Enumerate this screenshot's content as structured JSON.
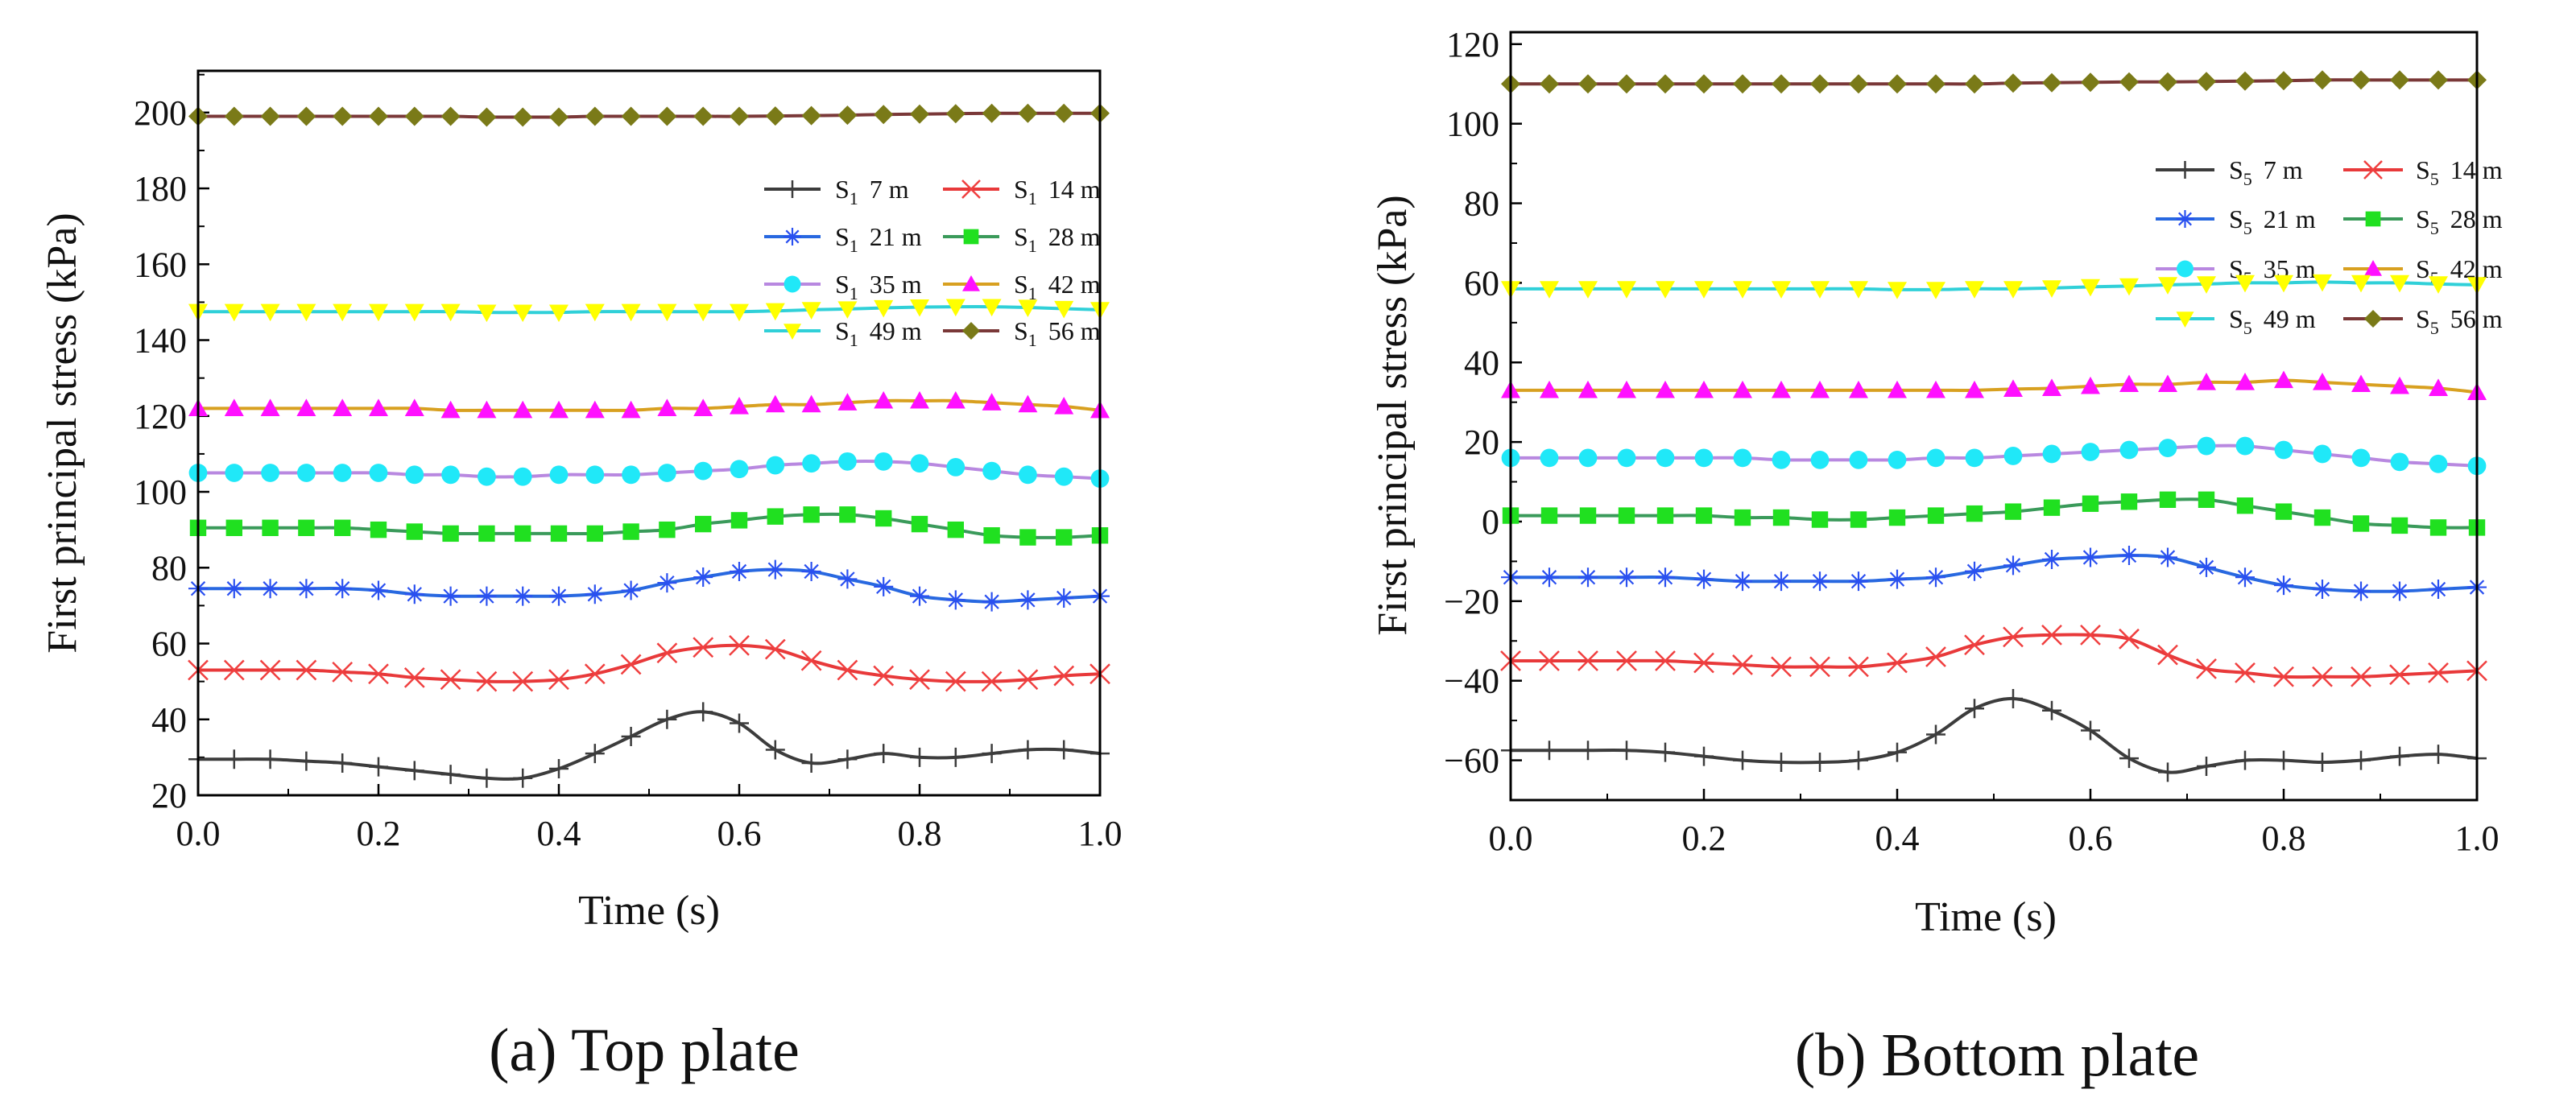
{
  "chart_data": [
    {
      "type": "line",
      "id": "a",
      "caption": "(a) Top plate",
      "xlabel": "Time (s)",
      "ylabel": "First principal stress (kPa)",
      "xlim": [
        0,
        1
      ],
      "ylim": [
        20,
        211
      ],
      "xticks": [
        "0.0",
        "0.2",
        "0.4",
        "0.6",
        "0.8",
        "1.0"
      ],
      "yticks": [
        "20",
        "40",
        "60",
        "80",
        "100",
        "120",
        "140",
        "160",
        "180",
        "200"
      ],
      "legend_position": "top-right",
      "x_step": 0.04,
      "series": [
        {
          "name": "S1 7 m",
          "label_main": "S",
          "label_sub": "1",
          "label_tail": "7 m",
          "values": [
            29.5,
            29.5,
            29.5,
            29,
            28.5,
            27.5,
            26.5,
            25.5,
            24.5,
            24.5,
            27,
            31,
            35.5,
            40,
            42,
            39,
            32,
            28.5,
            29.5,
            31,
            30,
            30,
            31,
            32,
            32,
            31
          ]
        },
        {
          "name": "S1 14 m",
          "label_main": "S",
          "label_sub": "1",
          "label_tail": "14 m",
          "values": [
            53,
            53,
            53,
            53,
            52.5,
            52,
            51,
            50.5,
            50,
            50,
            50.5,
            52,
            54.5,
            57.5,
            59,
            59.5,
            58.5,
            55.5,
            53,
            51.5,
            50.5,
            50,
            50,
            50.5,
            51.5,
            52
          ]
        },
        {
          "name": "S1 21 m",
          "label_main": "S",
          "label_sub": "1",
          "label_tail": "21 m",
          "values": [
            74.5,
            74.5,
            74.5,
            74.5,
            74.5,
            74,
            73,
            72.5,
            72.5,
            72.5,
            72.5,
            73,
            74,
            76,
            77.5,
            79,
            79.5,
            79,
            77,
            75,
            72.5,
            71.5,
            71,
            71.5,
            72,
            72.5
          ]
        },
        {
          "name": "S1 28 m",
          "label_main": "S",
          "label_sub": "1",
          "label_tail": "28 m",
          "values": [
            90.5,
            90.5,
            90.5,
            90.5,
            90.5,
            90,
            89.5,
            89,
            89,
            89,
            89,
            89,
            89.5,
            90,
            91.5,
            92.5,
            93.5,
            94,
            94,
            93,
            91.5,
            90,
            88.5,
            88,
            88,
            88.5
          ]
        },
        {
          "name": "S1 35 m",
          "label_main": "S",
          "label_sub": "1",
          "label_tail": "35 m",
          "values": [
            105,
            105,
            105,
            105,
            105,
            105,
            104.5,
            104.5,
            104,
            104,
            104.5,
            104.5,
            104.5,
            105,
            105.5,
            106,
            107,
            107.5,
            108,
            108,
            107.5,
            106.5,
            105.5,
            104.5,
            104,
            103.5
          ]
        },
        {
          "name": "S1 42 m",
          "label_main": "S",
          "label_sub": "1",
          "label_tail": "42 m",
          "values": [
            122,
            122,
            122,
            122,
            122,
            122,
            122,
            121.5,
            121.5,
            121.5,
            121.5,
            121.5,
            121.5,
            122,
            122,
            122.5,
            123,
            123,
            123.5,
            124,
            124,
            124,
            123.5,
            123,
            122.5,
            121.5
          ]
        },
        {
          "name": "S1 49 m",
          "label_main": "S",
          "label_sub": "1",
          "label_tail": "49 m",
          "values": [
            147.5,
            147.5,
            147.5,
            147.5,
            147.5,
            147.5,
            147.5,
            147.5,
            147.3,
            147.3,
            147.3,
            147.5,
            147.5,
            147.5,
            147.5,
            147.5,
            147.7,
            148,
            148.2,
            148.5,
            148.7,
            148.8,
            148.8,
            148.6,
            148.3,
            148
          ]
        },
        {
          "name": "S1 56 m",
          "label_main": "S",
          "label_sub": "1",
          "label_tail": "56 m",
          "values": [
            199,
            199,
            199,
            199,
            199,
            199,
            199,
            199,
            198.8,
            198.8,
            198.8,
            199,
            199,
            199,
            199,
            199,
            199.1,
            199.2,
            199.3,
            199.5,
            199.6,
            199.7,
            199.8,
            199.8,
            199.8,
            199.8
          ]
        }
      ]
    },
    {
      "type": "line",
      "id": "b",
      "caption": "(b) Bottom plate",
      "xlabel": "Time (s)",
      "ylabel": "First principal stress (kPa)",
      "xlim": [
        0,
        1
      ],
      "ylim": [
        -70,
        123
      ],
      "xticks": [
        "0.0",
        "0.2",
        "0.4",
        "0.6",
        "0.8",
        "1.0"
      ],
      "yticks": [
        "-60",
        "-40",
        "-20",
        "0",
        "20",
        "40",
        "60",
        "80",
        "100",
        "120"
      ],
      "legend_position": "top-right",
      "x_step": 0.04,
      "series": [
        {
          "name": "S5 7 m",
          "label_main": "S",
          "label_sub": "5",
          "label_tail": "7 m",
          "values": [
            -57.5,
            -57.5,
            -57.5,
            -57.5,
            -58,
            -59,
            -60,
            -60.5,
            -60.5,
            -60,
            -58,
            -53.5,
            -47,
            -44.5,
            -47.5,
            -52.5,
            -59.5,
            -63,
            -61.5,
            -60,
            -60,
            -60.5,
            -60,
            -59,
            -58.5,
            -59.5
          ]
        },
        {
          "name": "S5 14 m",
          "label_main": "S",
          "label_sub": "5",
          "label_tail": "14 m",
          "values": [
            -35,
            -35,
            -35,
            -35,
            -35,
            -35.5,
            -36,
            -36.5,
            -36.5,
            -36.5,
            -35.5,
            -34,
            -31,
            -29,
            -28.5,
            -28.5,
            -29.5,
            -33.5,
            -37,
            -38,
            -39,
            -39,
            -39,
            -38.5,
            -38,
            -37.5
          ]
        },
        {
          "name": "S5 21 m",
          "label_main": "S",
          "label_sub": "5",
          "label_tail": "21 m",
          "values": [
            -14,
            -14,
            -14,
            -14,
            -14,
            -14.5,
            -15,
            -15,
            -15,
            -15,
            -14.5,
            -14,
            -12.5,
            -11,
            -9.5,
            -9,
            -8.5,
            -9,
            -11.5,
            -14,
            -16,
            -17,
            -17.5,
            -17.5,
            -17,
            -16.5
          ]
        },
        {
          "name": "S5 28 m",
          "label_main": "S",
          "label_sub": "5",
          "label_tail": "28 m",
          "values": [
            1.5,
            1.5,
            1.5,
            1.5,
            1.5,
            1.5,
            1,
            1,
            0.5,
            0.5,
            1,
            1.5,
            2,
            2.5,
            3.5,
            4.5,
            5,
            5.5,
            5.5,
            4,
            2.5,
            1,
            -0.5,
            -1,
            -1.5,
            -1.5
          ]
        },
        {
          "name": "S5 35 m",
          "label_main": "S",
          "label_sub": "5",
          "label_tail": "35 m",
          "values": [
            16,
            16,
            16,
            16,
            16,
            16,
            16,
            15.5,
            15.5,
            15.5,
            15.5,
            16,
            16,
            16.5,
            17,
            17.5,
            18,
            18.5,
            19,
            19,
            18,
            17,
            16,
            15,
            14.5,
            14
          ]
        },
        {
          "name": "S5 42 m",
          "label_main": "S",
          "label_sub": "5",
          "label_tail": "42 m",
          "values": [
            33,
            33,
            33,
            33,
            33,
            33,
            33,
            33,
            33,
            33,
            33,
            33,
            33,
            33.3,
            33.5,
            34,
            34.5,
            34.5,
            35,
            35,
            35.5,
            35,
            34.5,
            34,
            33.5,
            32.5
          ]
        },
        {
          "name": "S5 49 m",
          "label_main": "S",
          "label_sub": "5",
          "label_tail": "49 m",
          "values": [
            58.5,
            58.5,
            58.5,
            58.5,
            58.5,
            58.5,
            58.5,
            58.5,
            58.5,
            58.5,
            58.3,
            58.3,
            58.5,
            58.5,
            58.7,
            59,
            59.2,
            59.5,
            59.7,
            60,
            60,
            60.2,
            60,
            60,
            59.7,
            59.5
          ]
        },
        {
          "name": "S5 56 m",
          "label_main": "S",
          "label_sub": "5",
          "label_tail": "56 m",
          "values": [
            110,
            110,
            110,
            110,
            110,
            110,
            110,
            110,
            110,
            110,
            110,
            110,
            110,
            110.2,
            110.3,
            110.4,
            110.5,
            110.5,
            110.6,
            110.7,
            110.8,
            111,
            111,
            111,
            111,
            111
          ]
        }
      ]
    }
  ],
  "styles": [
    {
      "line": "#3c3c3c",
      "marker": "#3c3c3c",
      "shape": "plus"
    },
    {
      "line": "#e8393a",
      "marker": "#f04040",
      "shape": "x"
    },
    {
      "line": "#2868e0",
      "marker": "#2a50f0",
      "shape": "star"
    },
    {
      "line": "#3a9a5a",
      "marker": "#20e020",
      "shape": "square"
    },
    {
      "line": "#b888e0",
      "marker": "#20e8f8",
      "shape": "circle"
    },
    {
      "line": "#d8a020",
      "marker": "#ff10ff",
      "shape": "tri-up"
    },
    {
      "line": "#30d0d8",
      "marker": "#ffff00",
      "shape": "tri-down"
    },
    {
      "line": "#7a3838",
      "marker": "#7a7a18",
      "shape": "diamond"
    }
  ]
}
